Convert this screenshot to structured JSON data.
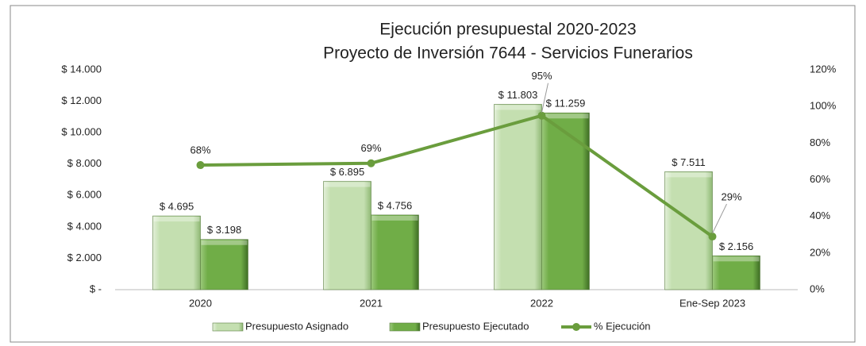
{
  "chart_data": {
    "type": "bar",
    "title": "Ejecución presupuestal 2020-2023",
    "subtitle": "Proyecto de Inversión 7644 - Servicios Funerarios",
    "categories": [
      "2020",
      "2021",
      "2022",
      "Ene-Sep 2023"
    ],
    "series": [
      {
        "name": "Presupuesto Asignado",
        "type": "bar",
        "color": "#c4dfb0",
        "values": [
          4695,
          6895,
          11803,
          7511
        ],
        "value_labels": [
          "$ 4.695",
          "$ 6.895",
          "$ 11.803",
          "$ 7.511"
        ]
      },
      {
        "name": "Presupuesto Ejecutado",
        "type": "bar",
        "color": "#70ad47",
        "values": [
          3198,
          4756,
          11259,
          2156
        ],
        "value_labels": [
          "$ 3.198",
          "$ 4.756",
          "$ 11.259",
          "$ 2.156"
        ]
      },
      {
        "name": "% Ejecución",
        "type": "line",
        "axis": "y2",
        "color": "#6a9d3d",
        "values": [
          68,
          69,
          95,
          29
        ],
        "value_labels": [
          "68%",
          "69%",
          "95%",
          "29%"
        ]
      }
    ],
    "ylim": [
      0,
      14000
    ],
    "yticks": [
      {
        "value": 0,
        "label": "$ -"
      },
      {
        "value": 2000,
        "label": "$ 2.000"
      },
      {
        "value": 4000,
        "label": "$ 4.000"
      },
      {
        "value": 6000,
        "label": "$ 6.000"
      },
      {
        "value": 8000,
        "label": "$ 8.000"
      },
      {
        "value": 10000,
        "label": "$ 10.000"
      },
      {
        "value": 12000,
        "label": "$ 12.000"
      },
      {
        "value": 14000,
        "label": "$ 14.000"
      }
    ],
    "y2lim": [
      0,
      120
    ],
    "y2ticks": [
      {
        "value": 0,
        "label": "0%"
      },
      {
        "value": 20,
        "label": "20%"
      },
      {
        "value": 40,
        "label": "40%"
      },
      {
        "value": 60,
        "label": "60%"
      },
      {
        "value": 80,
        "label": "80%"
      },
      {
        "value": 100,
        "label": "100%"
      },
      {
        "value": 120,
        "label": "120%"
      }
    ],
    "legend": "bottom"
  }
}
